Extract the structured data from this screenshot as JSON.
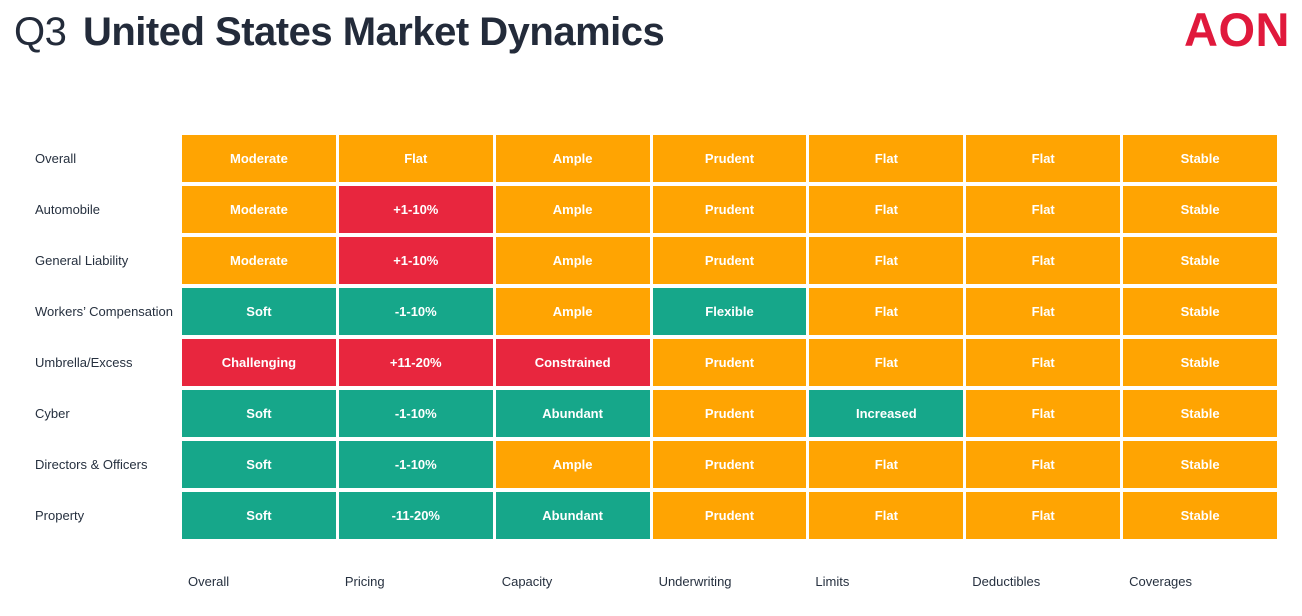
{
  "header": {
    "title_prefix": "Q3",
    "title_main": "United States Market Dynamics",
    "logo_text": "AON"
  },
  "colors": {
    "orange": "#FFA402",
    "red": "#E8263E",
    "green": "#16A78A",
    "title_text": "#232B3A",
    "logo_red": "#E0193C",
    "cell_text": "#FFFFFF"
  },
  "chart_data": {
    "type": "heatmap",
    "title": "Q3 United States Market Dynamics",
    "columns": [
      "Overall",
      "Pricing",
      "Capacity",
      "Underwriting",
      "Limits",
      "Deductibles",
      "Coverages"
    ],
    "status_colors": {
      "orange": "#FFA402",
      "red": "#E8263E",
      "green": "#16A78A"
    },
    "rows": [
      {
        "label": "Overall",
        "cells": [
          {
            "text": "Moderate",
            "status": "orange"
          },
          {
            "text": "Flat",
            "status": "orange"
          },
          {
            "text": "Ample",
            "status": "orange"
          },
          {
            "text": "Prudent",
            "status": "orange"
          },
          {
            "text": "Flat",
            "status": "orange"
          },
          {
            "text": "Flat",
            "status": "orange"
          },
          {
            "text": "Stable",
            "status": "orange"
          }
        ]
      },
      {
        "label": "Automobile",
        "cells": [
          {
            "text": "Moderate",
            "status": "orange"
          },
          {
            "text": "+1-10%",
            "status": "red"
          },
          {
            "text": "Ample",
            "status": "orange"
          },
          {
            "text": "Prudent",
            "status": "orange"
          },
          {
            "text": "Flat",
            "status": "orange"
          },
          {
            "text": "Flat",
            "status": "orange"
          },
          {
            "text": "Stable",
            "status": "orange"
          }
        ]
      },
      {
        "label": "General Liability",
        "cells": [
          {
            "text": "Moderate",
            "status": "orange"
          },
          {
            "text": "+1-10%",
            "status": "red"
          },
          {
            "text": "Ample",
            "status": "orange"
          },
          {
            "text": "Prudent",
            "status": "orange"
          },
          {
            "text": "Flat",
            "status": "orange"
          },
          {
            "text": "Flat",
            "status": "orange"
          },
          {
            "text": "Stable",
            "status": "orange"
          }
        ]
      },
      {
        "label": "Workers’ Compensation",
        "cells": [
          {
            "text": "Soft",
            "status": "green"
          },
          {
            "text": "-1-10%",
            "status": "green"
          },
          {
            "text": "Ample",
            "status": "orange"
          },
          {
            "text": "Flexible",
            "status": "green"
          },
          {
            "text": "Flat",
            "status": "orange"
          },
          {
            "text": "Flat",
            "status": "orange"
          },
          {
            "text": "Stable",
            "status": "orange"
          }
        ]
      },
      {
        "label": "Umbrella/Excess",
        "cells": [
          {
            "text": "Challenging",
            "status": "red"
          },
          {
            "text": "+11-20%",
            "status": "red"
          },
          {
            "text": "Constrained",
            "status": "red"
          },
          {
            "text": "Prudent",
            "status": "orange"
          },
          {
            "text": "Flat",
            "status": "orange"
          },
          {
            "text": "Flat",
            "status": "orange"
          },
          {
            "text": "Stable",
            "status": "orange"
          }
        ]
      },
      {
        "label": "Cyber",
        "cells": [
          {
            "text": "Soft",
            "status": "green"
          },
          {
            "text": "-1-10%",
            "status": "green"
          },
          {
            "text": "Abundant",
            "status": "green"
          },
          {
            "text": "Prudent",
            "status": "orange"
          },
          {
            "text": "Increased",
            "status": "green"
          },
          {
            "text": "Flat",
            "status": "orange"
          },
          {
            "text": "Stable",
            "status": "orange"
          }
        ]
      },
      {
        "label": "Directors & Officers",
        "cells": [
          {
            "text": "Soft",
            "status": "green"
          },
          {
            "text": "-1-10%",
            "status": "green"
          },
          {
            "text": "Ample",
            "status": "orange"
          },
          {
            "text": "Prudent",
            "status": "orange"
          },
          {
            "text": "Flat",
            "status": "orange"
          },
          {
            "text": "Flat",
            "status": "orange"
          },
          {
            "text": "Stable",
            "status": "orange"
          }
        ]
      },
      {
        "label": "Property",
        "cells": [
          {
            "text": "Soft",
            "status": "green"
          },
          {
            "text": "-11-20%",
            "status": "green"
          },
          {
            "text": "Abundant",
            "status": "green"
          },
          {
            "text": "Prudent",
            "status": "orange"
          },
          {
            "text": "Flat",
            "status": "orange"
          },
          {
            "text": "Flat",
            "status": "orange"
          },
          {
            "text": "Stable",
            "status": "orange"
          }
        ]
      }
    ]
  }
}
